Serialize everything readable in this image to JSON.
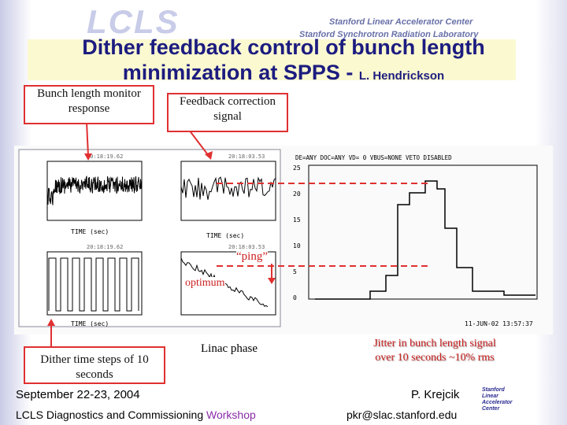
{
  "header": {
    "logo": "LCLS",
    "org_lines": [
      "Stanford Linear Accelerator Center",
      "Stanford Synchrotron Radiation Laboratory"
    ]
  },
  "title": {
    "text": "Dither feedback control of bunch length minimization at SPPS - ",
    "author": "L. Hendrickson"
  },
  "callouts": {
    "bunch_monitor": "Bunch length monitor response",
    "feedback": "Feedback correction signal",
    "dither": "Dither time steps of 10 seconds",
    "linac": "Linac phase",
    "jitter": "Jitter in bunch length signal over 10 seconds ~10% rms",
    "ping": "“ping”",
    "optimum": "optimum"
  },
  "plots": {
    "timestamps": [
      "20:18:19.62",
      "20:18:03.53",
      "20:18:19.62",
      "20:18:03.53"
    ],
    "time_label": "TIME (sec)",
    "hist_header": "DE=ANY  DOC=ANY  VD= 0  VBUS=NONE  VETO DISABLED",
    "hist_date": "11-JUN-02 13:57:37",
    "hist_yticks": [
      "25",
      "20",
      "15",
      "10",
      "5",
      "0"
    ]
  },
  "footer": {
    "date": "September 22-23, 2004",
    "event": "LCLS Diagnostics and Commissioning ",
    "event_highlight": "Workshop",
    "author": "P. Krejcik",
    "email": "pkr@slac.stanford.edu",
    "logo_lines": [
      "Stanford",
      "Linear",
      "Accelerator",
      "Center"
    ]
  }
}
